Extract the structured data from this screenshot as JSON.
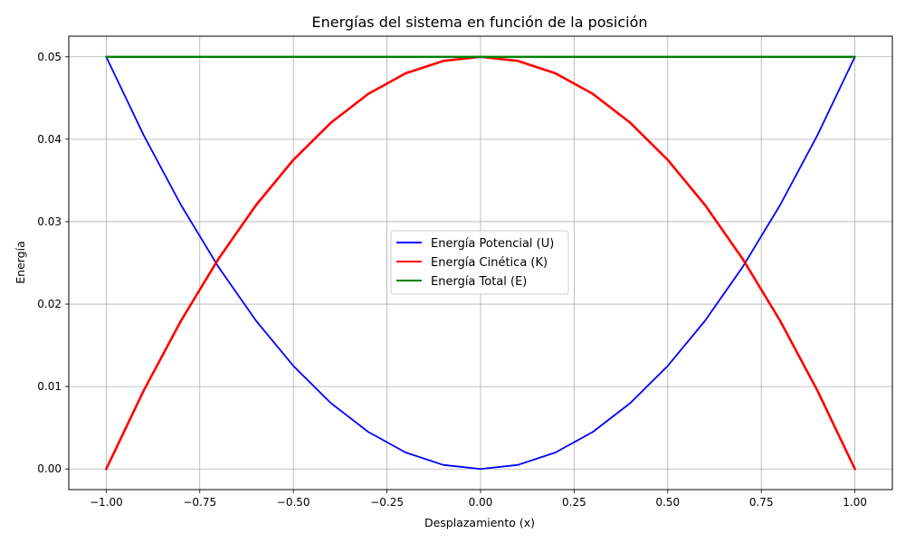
{
  "chart_data": {
    "type": "line",
    "title": "Energías del sistema en función de la posición",
    "xlabel": "Desplazamiento (x)",
    "ylabel": "Energía",
    "xlim": [
      -1.1,
      1.1
    ],
    "ylim": [
      -0.0025,
      0.0525
    ],
    "xticks": [
      -1.0,
      -0.75,
      -0.5,
      -0.25,
      0.0,
      0.25,
      0.5,
      0.75,
      1.0
    ],
    "xtick_labels": [
      "−1.00",
      "−0.75",
      "−0.50",
      "−0.25",
      "0.00",
      "0.25",
      "0.50",
      "0.75",
      "1.00"
    ],
    "yticks": [
      0.0,
      0.01,
      0.02,
      0.03,
      0.04,
      0.05
    ],
    "ytick_labels": [
      "0.00",
      "0.01",
      "0.02",
      "0.03",
      "0.04",
      "0.05"
    ],
    "grid": true,
    "legend_position": "center",
    "x": [
      -1.0,
      -0.9,
      -0.8,
      -0.7,
      -0.6,
      -0.5,
      -0.4,
      -0.3,
      -0.2,
      -0.1,
      0.0,
      0.1,
      0.2,
      0.3,
      0.4,
      0.5,
      0.6,
      0.7,
      0.8,
      0.9,
      1.0
    ],
    "series": [
      {
        "name": "Energía Potencial (U)",
        "color": "#0000ff",
        "values": [
          0.05,
          0.0405,
          0.032,
          0.0245,
          0.018,
          0.0125,
          0.008,
          0.0045,
          0.002,
          0.0005,
          0.0,
          0.0005,
          0.002,
          0.0045,
          0.008,
          0.0125,
          0.018,
          0.0245,
          0.032,
          0.0405,
          0.05
        ]
      },
      {
        "name": "Energía Cinética (K)",
        "color": "#ff0000",
        "values": [
          0.0,
          0.0095,
          0.018,
          0.0255,
          0.032,
          0.0375,
          0.042,
          0.0455,
          0.048,
          0.0495,
          0.05,
          0.0495,
          0.048,
          0.0455,
          0.042,
          0.0375,
          0.032,
          0.0255,
          0.018,
          0.0095,
          0.0
        ]
      },
      {
        "name": "Energía Total (E)",
        "color": "#008000",
        "values": [
          0.05,
          0.05,
          0.05,
          0.05,
          0.05,
          0.05,
          0.05,
          0.05,
          0.05,
          0.05,
          0.05,
          0.05,
          0.05,
          0.05,
          0.05,
          0.05,
          0.05,
          0.05,
          0.05,
          0.05,
          0.05
        ]
      }
    ]
  }
}
